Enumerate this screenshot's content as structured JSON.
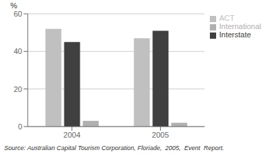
{
  "chart_data": {
    "type": "bar",
    "categories": [
      "2004",
      "2005"
    ],
    "series": [
      {
        "name": "ACT",
        "color": "#c0c0c0",
        "values": [
          52,
          47
        ]
      },
      {
        "name": "Interstate",
        "color": "#404040",
        "values": [
          45,
          51
        ]
      },
      {
        "name": "International",
        "color": "#b0b0b0",
        "values": [
          3,
          2
        ]
      }
    ],
    "ylabel": "%",
    "ylim": [
      0,
      60
    ],
    "yticks": [
      0,
      20,
      40,
      60
    ],
    "grid": true,
    "legend": "upper right",
    "annotations": [
      "Source: Australian Capital Tourism Corporation, Floriade,  2005,  Event  Report."
    ]
  }
}
